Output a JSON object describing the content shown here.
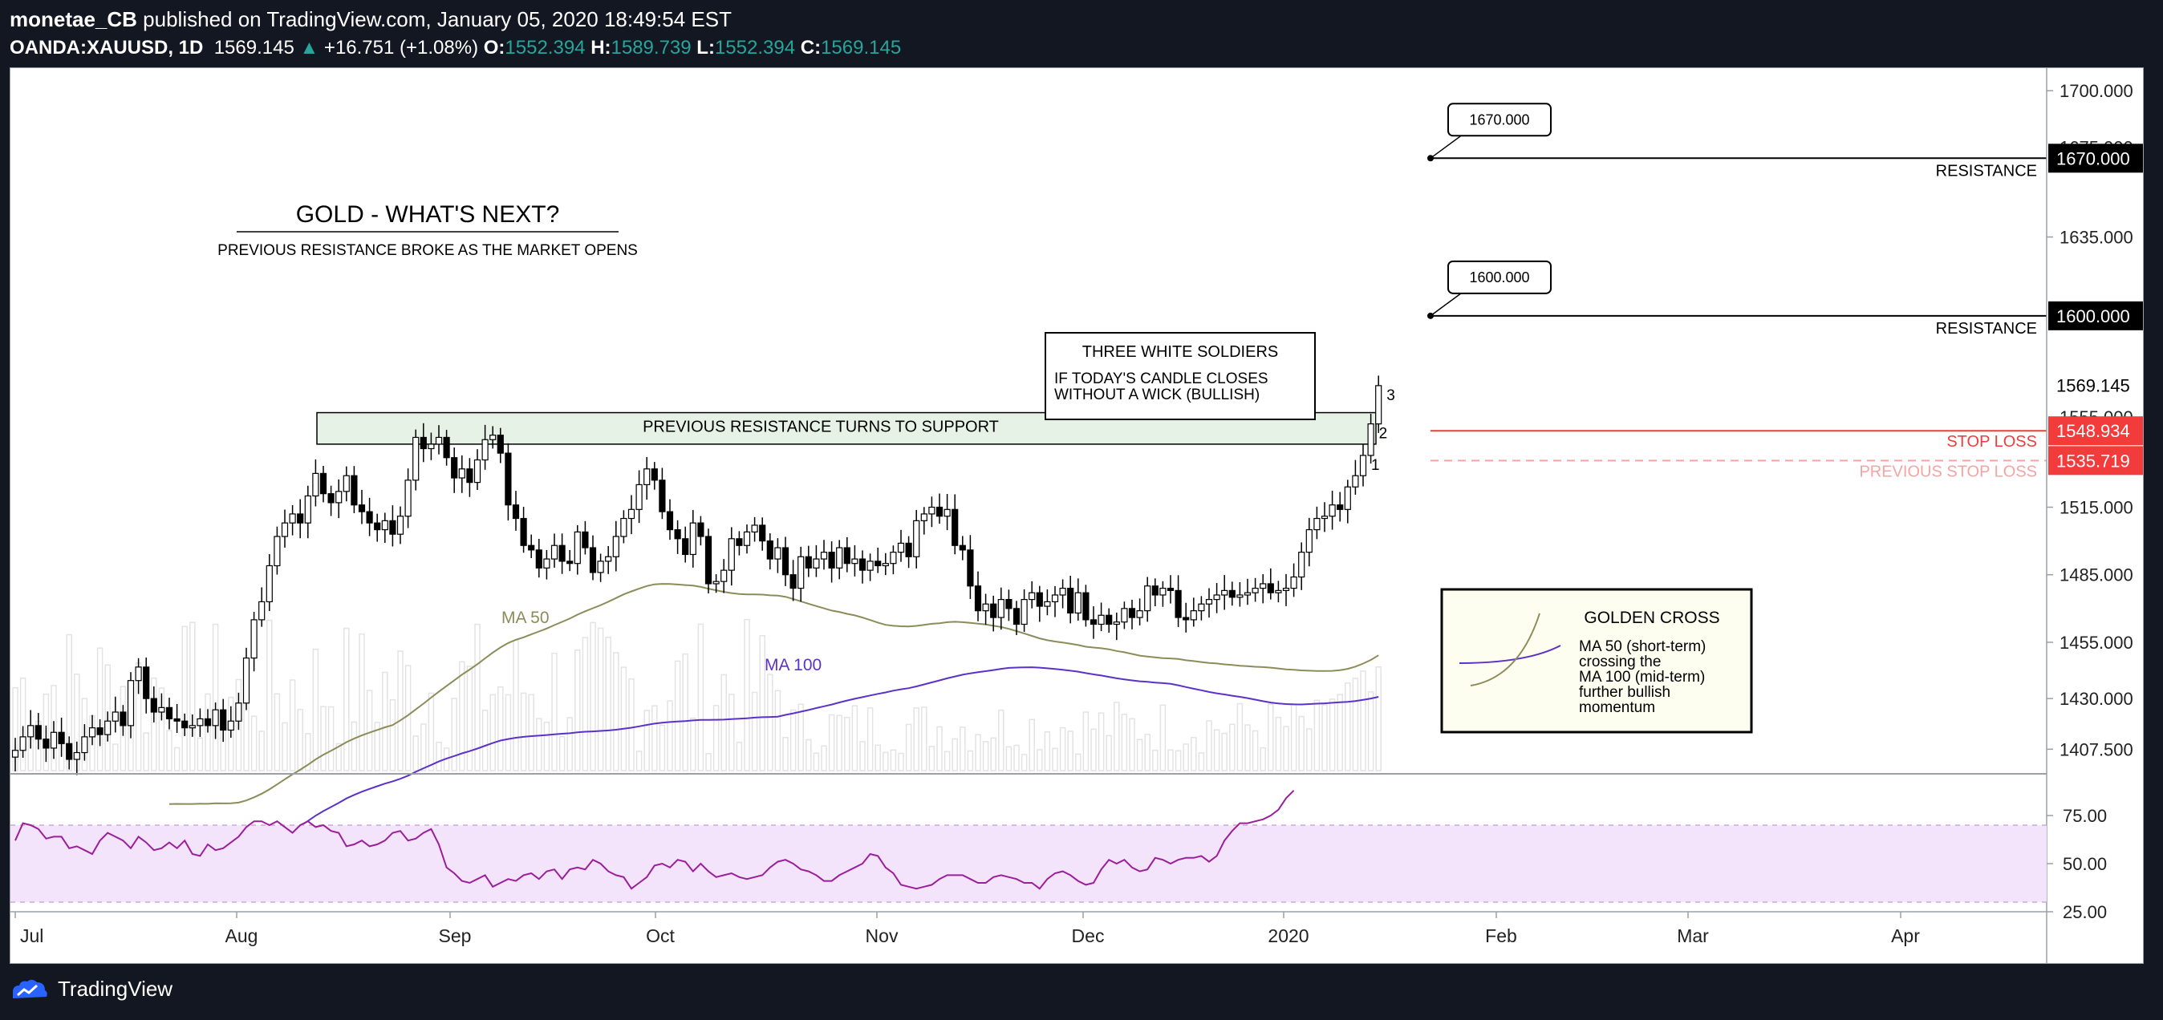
{
  "header": {
    "author": "monetae_CB",
    "published_text": "published on TradingView.com, January 05, 2020 18:49:54 EST",
    "symbol": "OANDA:XAUUSD, 1D",
    "last": "1569.145",
    "change_arrow": "▲",
    "change": "+16.751 (+1.08%)",
    "o_label": "O:",
    "o": "1552.394",
    "h_label": "H:",
    "h": "1589.739",
    "l_label": "L:",
    "l": "1552.394",
    "c_label": "C:",
    "c": "1569.145"
  },
  "footer": {
    "brand": "TradingView"
  },
  "annotations": {
    "title": "GOLD - WHAT'S NEXT?",
    "subtitle": "PREVIOUS RESISTANCE BROKE AS THE MARKET OPENS",
    "support_zone": "PREVIOUS RESISTANCE TURNS TO SUPPORT",
    "soldiers_title": "THREE WHITE SOLDIERS",
    "soldiers_line1": "IF TODAY'S CANDLE CLOSES",
    "soldiers_line2": "WITHOUT A WICK (BULLISH)",
    "soldier_labels": [
      "1",
      "2",
      "3"
    ],
    "ma50_label": "MA 50",
    "ma100_label": "MA 100",
    "golden_cross_title": "GOLDEN CROSS",
    "golden_cross_lines": [
      "MA 50 (short-term)",
      "crossing the",
      "MA 100 (mid-term)",
      "further bullish",
      "momentum"
    ],
    "resistance_label": "RESISTANCE",
    "stop_loss_label": "STOP LOSS",
    "prev_stop_loss_label": "PREVIOUS STOP LOSS",
    "callout_1670": "1670.000",
    "callout_1600": "1600.000"
  },
  "chart_data": {
    "type": "candlestick",
    "x_ticks": [
      "Jul",
      "Aug",
      "Sep",
      "Oct",
      "Nov",
      "Dec",
      "2020",
      "Feb",
      "Mar",
      "Apr"
    ],
    "y_ticks": [
      "1700.000",
      "1670.000",
      "1635.000",
      "1600.000",
      "1569.145",
      "1555.000",
      "1548.934",
      "1535.719",
      "1515.000",
      "1485.000",
      "1455.000",
      "1430.000",
      "1407.500"
    ],
    "ylim": [
      1398,
      1710
    ],
    "levels": {
      "resistance_1": 1670.0,
      "resistance_2": 1600.0,
      "stop_loss": 1548.934,
      "previous_stop_loss": 1535.719,
      "last_price": 1569.145
    },
    "level_labels": {
      "resistance_1": "1670.000",
      "resistance_2": "1600.000",
      "stop_loss": "1548.934",
      "previous_stop_loss": "1535.719",
      "last_price": "1569.145"
    },
    "support_zone": [
      1543,
      1557
    ],
    "closes": [
      1407,
      1413,
      1418,
      1412,
      1408,
      1415,
      1410,
      1403,
      1406,
      1413,
      1417,
      1414,
      1420,
      1424,
      1418,
      1438,
      1444,
      1430,
      1424,
      1426,
      1421,
      1420,
      1417,
      1418,
      1421,
      1418,
      1425,
      1416,
      1420,
      1428,
      1448,
      1465,
      1473,
      1489,
      1502,
      1508,
      1512,
      1508,
      1520,
      1530,
      1521,
      1517,
      1522,
      1529,
      1516,
      1513,
      1508,
      1505,
      1509,
      1503,
      1511,
      1527,
      1546,
      1541,
      1543,
      1546,
      1537,
      1528,
      1532,
      1526,
      1536,
      1545,
      1547,
      1539,
      1516,
      1510,
      1498,
      1496,
      1488,
      1492,
      1498,
      1491,
      1490,
      1504,
      1497,
      1486,
      1491,
      1493,
      1502,
      1510,
      1514,
      1525,
      1532,
      1527,
      1513,
      1505,
      1501,
      1494,
      1508,
      1502,
      1481,
      1482,
      1487,
      1501,
      1498,
      1504,
      1507,
      1500,
      1492,
      1497,
      1485,
      1479,
      1493,
      1488,
      1492,
      1495,
      1488,
      1497,
      1490,
      1492,
      1487,
      1491,
      1489,
      1490,
      1495,
      1499,
      1493,
      1509,
      1512,
      1515,
      1511,
      1514,
      1498,
      1496,
      1480,
      1469,
      1472,
      1466,
      1474,
      1470,
      1463,
      1474,
      1477,
      1471,
      1473,
      1476,
      1479,
      1468,
      1477,
      1465,
      1463,
      1467,
      1463,
      1464,
      1470,
      1466,
      1469,
      1480,
      1476,
      1479,
      1478,
      1466,
      1465,
      1469,
      1472,
      1474,
      1476,
      1478,
      1475,
      1476,
      1477,
      1479,
      1481,
      1477,
      1478,
      1479,
      1484,
      1495,
      1505,
      1510,
      1511,
      1516,
      1514,
      1524,
      1529,
      1538,
      1552,
      1569
    ],
    "rsi": {
      "levels": [
        25,
        50,
        75
      ],
      "band": [
        30,
        70
      ],
      "ylim": [
        25,
        90
      ],
      "y_ticks": [
        "75.00",
        "50.00",
        "25.00"
      ],
      "values": [
        62,
        71,
        70,
        68,
        63,
        64,
        64,
        58,
        59,
        57,
        55,
        62,
        66,
        64,
        62,
        58,
        64,
        61,
        57,
        58,
        61,
        58,
        62,
        55,
        54,
        60,
        57,
        58,
        61,
        64,
        69,
        72,
        72,
        70,
        72,
        69,
        66,
        70,
        72,
        69,
        70,
        67,
        66,
        59,
        60,
        62,
        59,
        60,
        62,
        66,
        67,
        62,
        63,
        66,
        68,
        60,
        48,
        45,
        41,
        40,
        42,
        44,
        38,
        40,
        42,
        41,
        44,
        45,
        42,
        46,
        47,
        42,
        47,
        48,
        47,
        52,
        50,
        46,
        44,
        43,
        37,
        40,
        43,
        49,
        50,
        48,
        52,
        51,
        46,
        50,
        46,
        43,
        44,
        45,
        43,
        42,
        43,
        44,
        48,
        51,
        52,
        50,
        47,
        46,
        44,
        41,
        41,
        44,
        46,
        48,
        50,
        55,
        54,
        48,
        45,
        39,
        38,
        37,
        38,
        39,
        42,
        44,
        44,
        44,
        42,
        40,
        40,
        43,
        44,
        43,
        42,
        40,
        40,
        37,
        42,
        45,
        46,
        44,
        41,
        39,
        40,
        47,
        52,
        50,
        52,
        48,
        46,
        47,
        53,
        52,
        50,
        52,
        53,
        53,
        54,
        51,
        54,
        62,
        67,
        71,
        71,
        72,
        73,
        75,
        78,
        84,
        88
      ]
    },
    "candles_note": "OHLC daily, Jul 2019 – Jan 2020"
  }
}
